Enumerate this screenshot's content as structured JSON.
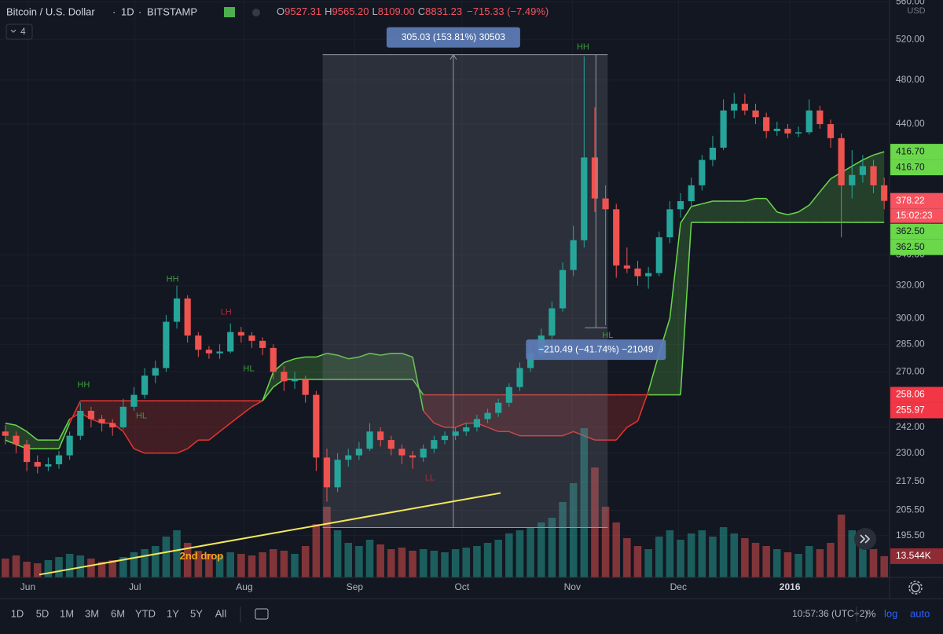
{
  "header": {
    "symbol": "Bitcoin / U.S. Dollar",
    "interval": "1D",
    "exchange": "BITSTAMP",
    "open_label": "O",
    "open": "9527.31",
    "high_label": "H",
    "high": "9565.20",
    "low_label": "L",
    "low": "8109.00",
    "close_label": "C",
    "close": "8831.23",
    "change": "−715.33 (−7.49%)",
    "indicators": "4",
    "currency": "USD"
  },
  "chart_data": {
    "type": "candlestick",
    "log_scale": true,
    "grid": true,
    "up_color": "#26a69a",
    "down_color": "#ef5350",
    "xlim": [
      -0.5,
      82.5
    ],
    "xticks": [
      {
        "value": 2.1,
        "label": "Jun"
      },
      {
        "value": 12.1,
        "label": "Jul"
      },
      {
        "value": 22.3,
        "label": "Aug"
      },
      {
        "value": 32.6,
        "label": "Sep"
      },
      {
        "value": 42.6,
        "label": "Oct"
      },
      {
        "value": 52.9,
        "label": "Nov"
      },
      {
        "value": 62.8,
        "label": "Dec"
      },
      {
        "value": 73.2,
        "label": "2016"
      }
    ],
    "ylim": [
      180,
      562
    ],
    "yticks": [
      {
        "value": 560,
        "label": "560.00"
      },
      {
        "value": 520,
        "label": "520.00"
      },
      {
        "value": 480,
        "label": "480.00"
      },
      {
        "value": 440,
        "label": "440.00"
      },
      {
        "value": 340,
        "label": "340.00"
      },
      {
        "value": 320,
        "label": "320.00"
      },
      {
        "value": 300,
        "label": "300.00"
      },
      {
        "value": 285,
        "label": "285.00"
      },
      {
        "value": 270,
        "label": "270.00"
      },
      {
        "value": 242,
        "label": "242.00"
      },
      {
        "value": 230,
        "label": "230.00"
      },
      {
        "value": 217.5,
        "label": "217.50"
      },
      {
        "value": 205.5,
        "label": "205.50"
      },
      {
        "value": 195.5,
        "label": "195.50"
      }
    ],
    "ohlc": [
      [
        240,
        243,
        234,
        238
      ],
      [
        238,
        240,
        230,
        234
      ],
      [
        234,
        236,
        222,
        226
      ],
      [
        226,
        229,
        221,
        224
      ],
      [
        224,
        228,
        222,
        225
      ],
      [
        225,
        231,
        223,
        229
      ],
      [
        229,
        240,
        227,
        238
      ],
      [
        238,
        254,
        236,
        250
      ],
      [
        250,
        252,
        242,
        246
      ],
      [
        246,
        248,
        240,
        244
      ],
      [
        244,
        246,
        238,
        242
      ],
      [
        242,
        256,
        241,
        252
      ],
      [
        252,
        262,
        250,
        258
      ],
      [
        258,
        272,
        256,
        268
      ],
      [
        268,
        276,
        264,
        272
      ],
      [
        272,
        302,
        270,
        298
      ],
      [
        298,
        320,
        294,
        312
      ],
      [
        312,
        314,
        286,
        290
      ],
      [
        290,
        292,
        278,
        282
      ],
      [
        282,
        284,
        277,
        280
      ],
      [
        280,
        285,
        277,
        281
      ],
      [
        281,
        297,
        280,
        292
      ],
      [
        292,
        295,
        286,
        290
      ],
      [
        290,
        292,
        283,
        287
      ],
      [
        287,
        289,
        279,
        283
      ],
      [
        283,
        285,
        266,
        270
      ],
      [
        270,
        273,
        260,
        265
      ],
      [
        265,
        270,
        261,
        266
      ],
      [
        266,
        268,
        254,
        258
      ],
      [
        258,
        260,
        222,
        228
      ],
      [
        228,
        232,
        209,
        215
      ],
      [
        215,
        230,
        213,
        227
      ],
      [
        227,
        232,
        224,
        229
      ],
      [
        229,
        235,
        227,
        232
      ],
      [
        232,
        244,
        231,
        240
      ],
      [
        240,
        242,
        233,
        236
      ],
      [
        236,
        238,
        229,
        232
      ],
      [
        232,
        234,
        225,
        229
      ],
      [
        229,
        231,
        223,
        228
      ],
      [
        228,
        234,
        226,
        232
      ],
      [
        232,
        238,
        230,
        236
      ],
      [
        236,
        240,
        234,
        238
      ],
      [
        238,
        242,
        236,
        240
      ],
      [
        240,
        244,
        238,
        242
      ],
      [
        242,
        248,
        240,
        246
      ],
      [
        246,
        251,
        244,
        249
      ],
      [
        249,
        256,
        247,
        254
      ],
      [
        254,
        264,
        252,
        262
      ],
      [
        262,
        275,
        260,
        272
      ],
      [
        272,
        283,
        270,
        280
      ],
      [
        280,
        294,
        278,
        290
      ],
      [
        290,
        310,
        288,
        306
      ],
      [
        306,
        335,
        304,
        330
      ],
      [
        330,
        360,
        326,
        350
      ],
      [
        350,
        503,
        345,
        412
      ],
      [
        412,
        455,
        370,
        380
      ],
      [
        380,
        390,
        296,
        372
      ],
      [
        372,
        376,
        325,
        333
      ],
      [
        333,
        345,
        328,
        331
      ],
      [
        331,
        336,
        320,
        326
      ],
      [
        326,
        332,
        318,
        328
      ],
      [
        328,
        356,
        326,
        352
      ],
      [
        352,
        378,
        348,
        372
      ],
      [
        372,
        384,
        366,
        378
      ],
      [
        378,
        396,
        374,
        390
      ],
      [
        390,
        414,
        386,
        410
      ],
      [
        410,
        430,
        405,
        420
      ],
      [
        420,
        462,
        418,
        452
      ],
      [
        452,
        468,
        445,
        458
      ],
      [
        458,
        467,
        448,
        452
      ],
      [
        452,
        458,
        440,
        446
      ],
      [
        446,
        450,
        428,
        434
      ],
      [
        434,
        442,
        430,
        436
      ],
      [
        436,
        440,
        428,
        432
      ],
      [
        432,
        438,
        429,
        433
      ],
      [
        433,
        462,
        431,
        452
      ],
      [
        452,
        456,
        436,
        440
      ],
      [
        440,
        444,
        420,
        428
      ],
      [
        428,
        432,
        352,
        390
      ],
      [
        390,
        418,
        380,
        398
      ],
      [
        398,
        414,
        392,
        405
      ],
      [
        405,
        410,
        384,
        390
      ],
      [
        390,
        396,
        372,
        378.22
      ]
    ],
    "volume_ylim": [
      0,
      100
    ],
    "volume": [
      12,
      14,
      10,
      9,
      11,
      13,
      15,
      14,
      12,
      10,
      11,
      13,
      16,
      18,
      20,
      26,
      30,
      22,
      17,
      15,
      14,
      16,
      15,
      14,
      16,
      18,
      17,
      15,
      20,
      34,
      45,
      30,
      22,
      20,
      24,
      21,
      18,
      19,
      17,
      18,
      17,
      16,
      18,
      19,
      20,
      22,
      24,
      28,
      30,
      32,
      35,
      38,
      48,
      60,
      95,
      70,
      45,
      35,
      25,
      20,
      18,
      26,
      30,
      24,
      28,
      30,
      26,
      32,
      28,
      25,
      22,
      20,
      18,
      16,
      15,
      20,
      18,
      22,
      40,
      30,
      22,
      18,
      13.544
    ],
    "volume_label": {
      "value": 13.544,
      "label": "13.544K",
      "color": "#8e2b33"
    },
    "cloud_up_color": "#6bd84b",
    "cloud_down_color": "#e8352f",
    "span_a": [
      244,
      243,
      240,
      236,
      236,
      236,
      246,
      249,
      246,
      244,
      244,
      240,
      232,
      230,
      230,
      230,
      230,
      232,
      236,
      236,
      240,
      244,
      248,
      252,
      255,
      270,
      275,
      277,
      278,
      278,
      280,
      279,
      277,
      278,
      280,
      279,
      280,
      280,
      278,
      250,
      244,
      242,
      242,
      244,
      244,
      242,
      240,
      240,
      238,
      238,
      238,
      238,
      238,
      240,
      238,
      236,
      236,
      236,
      242,
      245,
      260,
      280,
      300,
      362,
      374,
      376,
      378,
      378,
      378,
      378,
      380,
      380,
      370,
      368,
      370,
      375,
      385,
      395,
      400,
      405,
      410,
      414,
      416.7
    ],
    "span_b": [
      236,
      234,
      232,
      232,
      232,
      232,
      244,
      255,
      255,
      255,
      255,
      255,
      255,
      255,
      255,
      255,
      255,
      255,
      255,
      255,
      255,
      255,
      255,
      255,
      255,
      262,
      266,
      266,
      266,
      266,
      266,
      266,
      266,
      266,
      266,
      266,
      266,
      266,
      266,
      258,
      258,
      258,
      258,
      258,
      258,
      258,
      258,
      258,
      258,
      258,
      258,
      258,
      258,
      258,
      258,
      258,
      258,
      258,
      258,
      258,
      258,
      258,
      258,
      258,
      362.5,
      362.5,
      362.5,
      362.5,
      362.5,
      362.5,
      362.5,
      362.5,
      362.5,
      362.5,
      362.5,
      362.5,
      362.5,
      362.5,
      362.5,
      362.5,
      362.5,
      362.5,
      362.5
    ],
    "price_labels": [
      {
        "value": 416.7,
        "label": "416.70",
        "color": "#6bd84b"
      },
      {
        "value": 416.7,
        "label": "416.70",
        "color": "#6bd84b"
      },
      {
        "value": 378.22,
        "label": "378.22",
        "color": "#f7525f"
      },
      {
        "value": 362.5,
        "label": "362.50",
        "color": "#6bd84b"
      },
      {
        "value": 362.5,
        "label": "362.50",
        "color": "#6bd84b"
      },
      {
        "value": 258.06,
        "label": "258.06",
        "color": "#f23645"
      },
      {
        "value": 255.97,
        "label": "255.97",
        "color": "#f23645"
      }
    ],
    "countdown": "15:02:23",
    "annotations": [
      {
        "text": "HH",
        "x": 7.3,
        "y": 263,
        "color": "#3d9b3d"
      },
      {
        "text": "HL",
        "x": 12.7,
        "y": 247.5,
        "color": "#3d9b3d"
      },
      {
        "text": "HH",
        "x": 15.6,
        "y": 324,
        "color": "#3d9b3d"
      },
      {
        "text": "LH",
        "x": 20.6,
        "y": 303.5,
        "color": "#b22833"
      },
      {
        "text": "HL",
        "x": 22.7,
        "y": 271.5,
        "color": "#3d9b3d"
      },
      {
        "text": "LL",
        "x": 39.6,
        "y": 219,
        "color": "#b22833"
      },
      {
        "text": "HH",
        "x": 53.9,
        "y": 512,
        "color": "#3d9b3d"
      },
      {
        "text": "HL",
        "x": 56.2,
        "y": 290,
        "color": "#3d9b3d"
      },
      {
        "text": "2nd drop",
        "x": 18.3,
        "y": 187.5,
        "color": "#f7a21b"
      }
    ],
    "trend_line": {
      "x": [
        3.17,
        46.2
      ],
      "y": [
        181,
        212.6
      ],
      "color": "#f2e85a"
    },
    "measure_up": {
      "x": [
        29.6,
        56.2
      ],
      "y": [
        198.6,
        504.5
      ],
      "label": "305.03 (153.81%) 30503"
    },
    "measure_down": {
      "x": 55.1,
      "y": [
        504.5,
        294.5
      ],
      "label": "−210.49 (−41.74%) −21049"
    }
  },
  "toolbar": {
    "ranges": [
      "1D",
      "5D",
      "1M",
      "3M",
      "6M",
      "YTD",
      "1Y",
      "5Y",
      "All"
    ],
    "time": "10:57:36 (UTC+2)",
    "percent": "%",
    "log": "log",
    "auto": "auto"
  }
}
